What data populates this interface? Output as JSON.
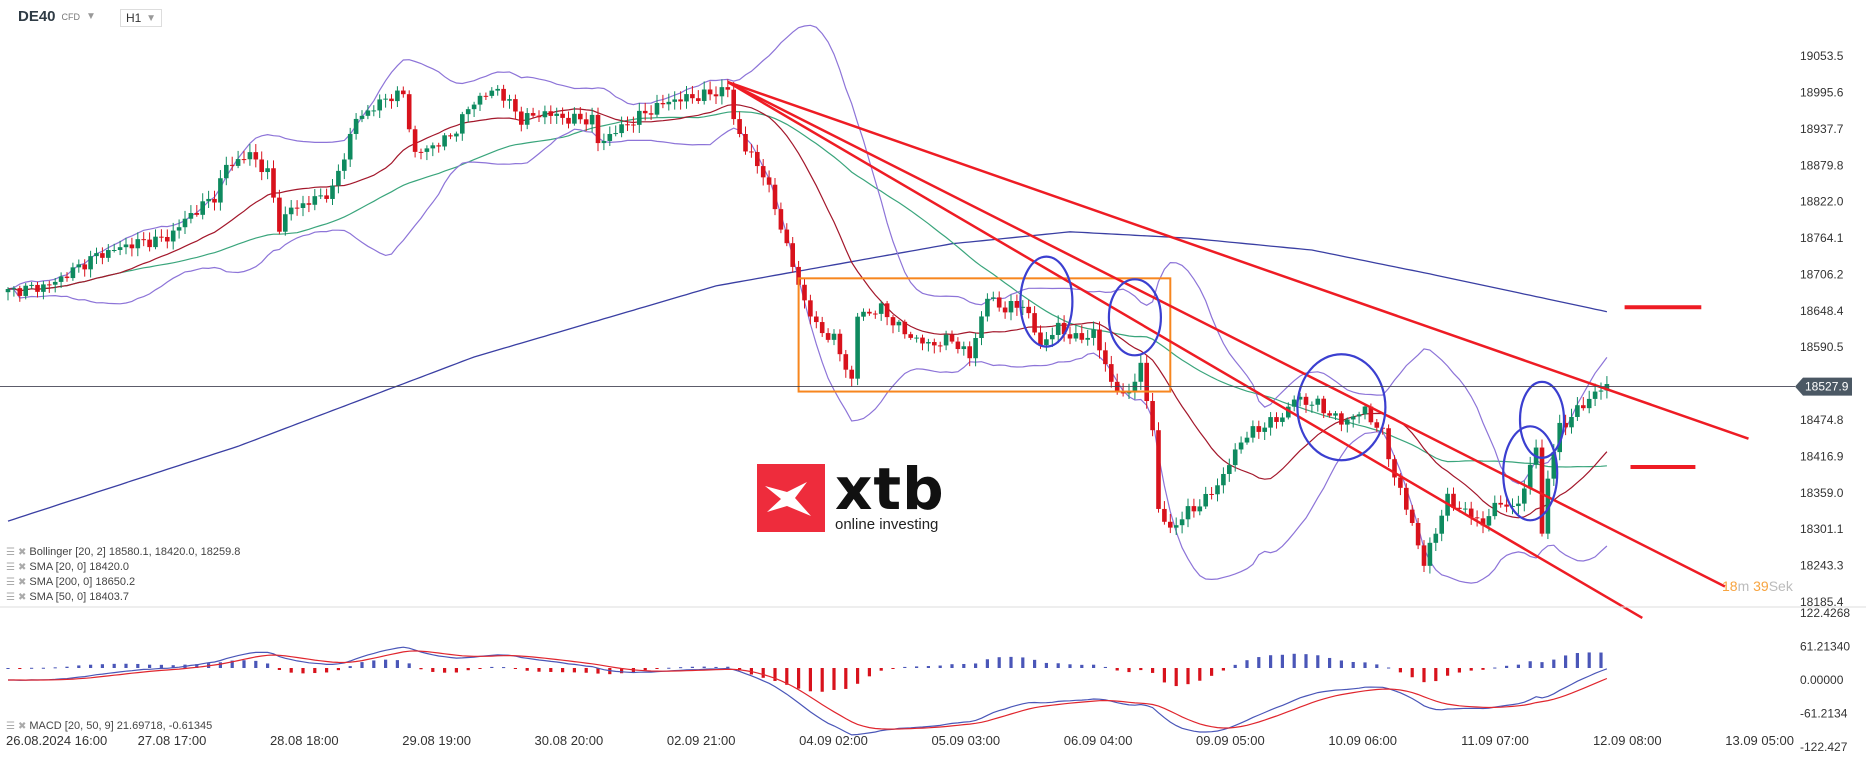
{
  "header": {
    "symbol": "DE40",
    "instrument_type": "CFD",
    "timeframe": "H1"
  },
  "legend": {
    "bollinger": "Bollinger  [20, 2] 18580.1,  18420.0,  18259.8",
    "sma20": "SMA [20, 0] 18420.0",
    "sma200": "SMA [200, 0] 18650.2",
    "sma50": "SMA [50, 0] 18403.7",
    "macd": "MACD  [20, 50, 9] 21.69718,  -0.61345"
  },
  "timer": {
    "minutes": "18",
    "minutes_unit": "m",
    "seconds": "39",
    "seconds_unit": "Sek"
  },
  "logo": {
    "word": "xtb",
    "tagline": "online investing"
  },
  "colors": {
    "up": "#0e8a5f",
    "down": "#d8121c",
    "bollinger": "#8d74d8",
    "sma20": "#a3172b",
    "sma50": "#3aa57c",
    "sma200": "#3a3fa3",
    "trendline": "#ee1c24",
    "box": "#f7861e",
    "ellipse": "#3b3fd0",
    "macd": "#4a56b8",
    "signal": "#e0262e"
  },
  "chart_data": {
    "type": "candlestick",
    "title": "",
    "price_axis": {
      "ticks": [
        "19053.5",
        "18995.6",
        "18937.7",
        "18879.8",
        "18822.0",
        "18764.1",
        "18706.2",
        "18648.4",
        "18590.5",
        "18474.8",
        "18416.9",
        "18359.0",
        "18301.1",
        "18243.3",
        "18185.4"
      ],
      "range": [
        18185.4,
        19053.5
      ]
    },
    "current_price": "18527.9",
    "macd_axis": {
      "ticks": [
        "122.4268",
        "61.21340",
        "0.00000",
        "-61.2134",
        "-122.427"
      ],
      "range": [
        -122.427,
        122.4268
      ]
    },
    "time_axis": {
      "ticks": [
        "26.08.2024  16:00",
        "27.08  17:00",
        "28.08  18:00",
        "29.08  19:00",
        "30.08  20:00",
        "02.09  21:00",
        "04.09  02:00",
        "05.09  03:00",
        "06.09  04:00",
        "09.09  05:00",
        "10.09  06:00",
        "11.09  07:00",
        "12.09  08:00",
        "13.09  05:00"
      ]
    },
    "candle_count": 272,
    "close_path": [
      [
        0,
        18679
      ],
      [
        7,
        18689
      ],
      [
        15,
        18736
      ],
      [
        21,
        18755
      ],
      [
        27,
        18764
      ],
      [
        31,
        18802
      ],
      [
        35,
        18830
      ],
      [
        37,
        18878
      ],
      [
        41,
        18897
      ],
      [
        44,
        18868
      ],
      [
        46,
        18783
      ],
      [
        48,
        18811
      ],
      [
        51,
        18821
      ],
      [
        55,
        18840
      ],
      [
        57,
        18897
      ],
      [
        59,
        18953
      ],
      [
        65,
        18991
      ],
      [
        67,
        18991
      ],
      [
        69,
        18897
      ],
      [
        71,
        18906
      ],
      [
        75,
        18925
      ],
      [
        79,
        18982
      ],
      [
        83,
        19001
      ],
      [
        87,
        18953
      ],
      [
        91,
        18963
      ],
      [
        95,
        18953
      ],
      [
        99,
        18953
      ],
      [
        100,
        18915
      ],
      [
        103,
        18934
      ],
      [
        108,
        18963
      ],
      [
        112,
        18982
      ],
      [
        118,
        18991
      ],
      [
        122,
        19001
      ],
      [
        123,
        18953
      ],
      [
        125,
        18906
      ],
      [
        128,
        18868
      ],
      [
        131,
        18783
      ],
      [
        134,
        18688
      ],
      [
        137,
        18622
      ],
      [
        140,
        18603
      ],
      [
        143,
        18537
      ],
      [
        144,
        18641
      ],
      [
        148,
        18651
      ],
      [
        152,
        18613
      ],
      [
        156,
        18594
      ],
      [
        160,
        18603
      ],
      [
        163,
        18575
      ],
      [
        166,
        18670
      ],
      [
        169,
        18651
      ],
      [
        172,
        18660
      ],
      [
        175,
        18594
      ],
      [
        178,
        18622
      ],
      [
        181,
        18603
      ],
      [
        184,
        18613
      ],
      [
        187,
        18537
      ],
      [
        189,
        18509
      ],
      [
        192,
        18556
      ],
      [
        194,
        18462
      ],
      [
        195,
        18329
      ],
      [
        197,
        18301
      ],
      [
        200,
        18329
      ],
      [
        203,
        18348
      ],
      [
        206,
        18386
      ],
      [
        209,
        18443
      ],
      [
        212,
        18462
      ],
      [
        216,
        18480
      ],
      [
        218,
        18509
      ],
      [
        222,
        18499
      ],
      [
        226,
        18471
      ],
      [
        230,
        18490
      ],
      [
        233,
        18452
      ],
      [
        235,
        18386
      ],
      [
        238,
        18310
      ],
      [
        240,
        18244
      ],
      [
        242,
        18301
      ],
      [
        244,
        18348
      ],
      [
        247,
        18329
      ],
      [
        250,
        18310
      ],
      [
        253,
        18348
      ],
      [
        255,
        18329
      ],
      [
        257,
        18367
      ],
      [
        259,
        18433
      ],
      [
        260,
        18291
      ],
      [
        261,
        18386
      ],
      [
        263,
        18462
      ],
      [
        266,
        18490
      ],
      [
        269,
        18518
      ],
      [
        271,
        18528
      ]
    ],
    "sma200_path": [
      [
        0,
        18314
      ],
      [
        39,
        18433
      ],
      [
        79,
        18575
      ],
      [
        120,
        18688
      ],
      [
        160,
        18755
      ],
      [
        180,
        18774
      ],
      [
        200,
        18764
      ],
      [
        221,
        18745
      ],
      [
        241,
        18707
      ],
      [
        271,
        18647
      ]
    ],
    "indicators": [
      "Bollinger(20,2)",
      "SMA(20)",
      "SMA(50)",
      "SMA(200)",
      "MACD(20,50,9)"
    ],
    "drawings": {
      "range_box": {
        "from": 134,
        "to": 197,
        "top": 18700,
        "bottom": 18520
      },
      "trendlines": [
        [
          [
            122,
            19012
          ],
          [
            295,
            18445
          ]
        ],
        [
          [
            122,
            19012
          ],
          [
            291,
            18210
          ]
        ],
        [
          [
            122,
            19012
          ],
          [
            277,
            18160
          ]
        ]
      ],
      "levels": [
        {
          "from": 274,
          "to": 287,
          "price": 18654
        },
        {
          "from": 275,
          "to": 286,
          "price": 18400
        }
      ],
      "circles": [
        [
          176,
          18663
        ],
        [
          191,
          18638
        ],
        [
          226,
          18495
        ],
        [
          260,
          18475
        ],
        [
          258,
          18390
        ]
      ]
    }
  }
}
